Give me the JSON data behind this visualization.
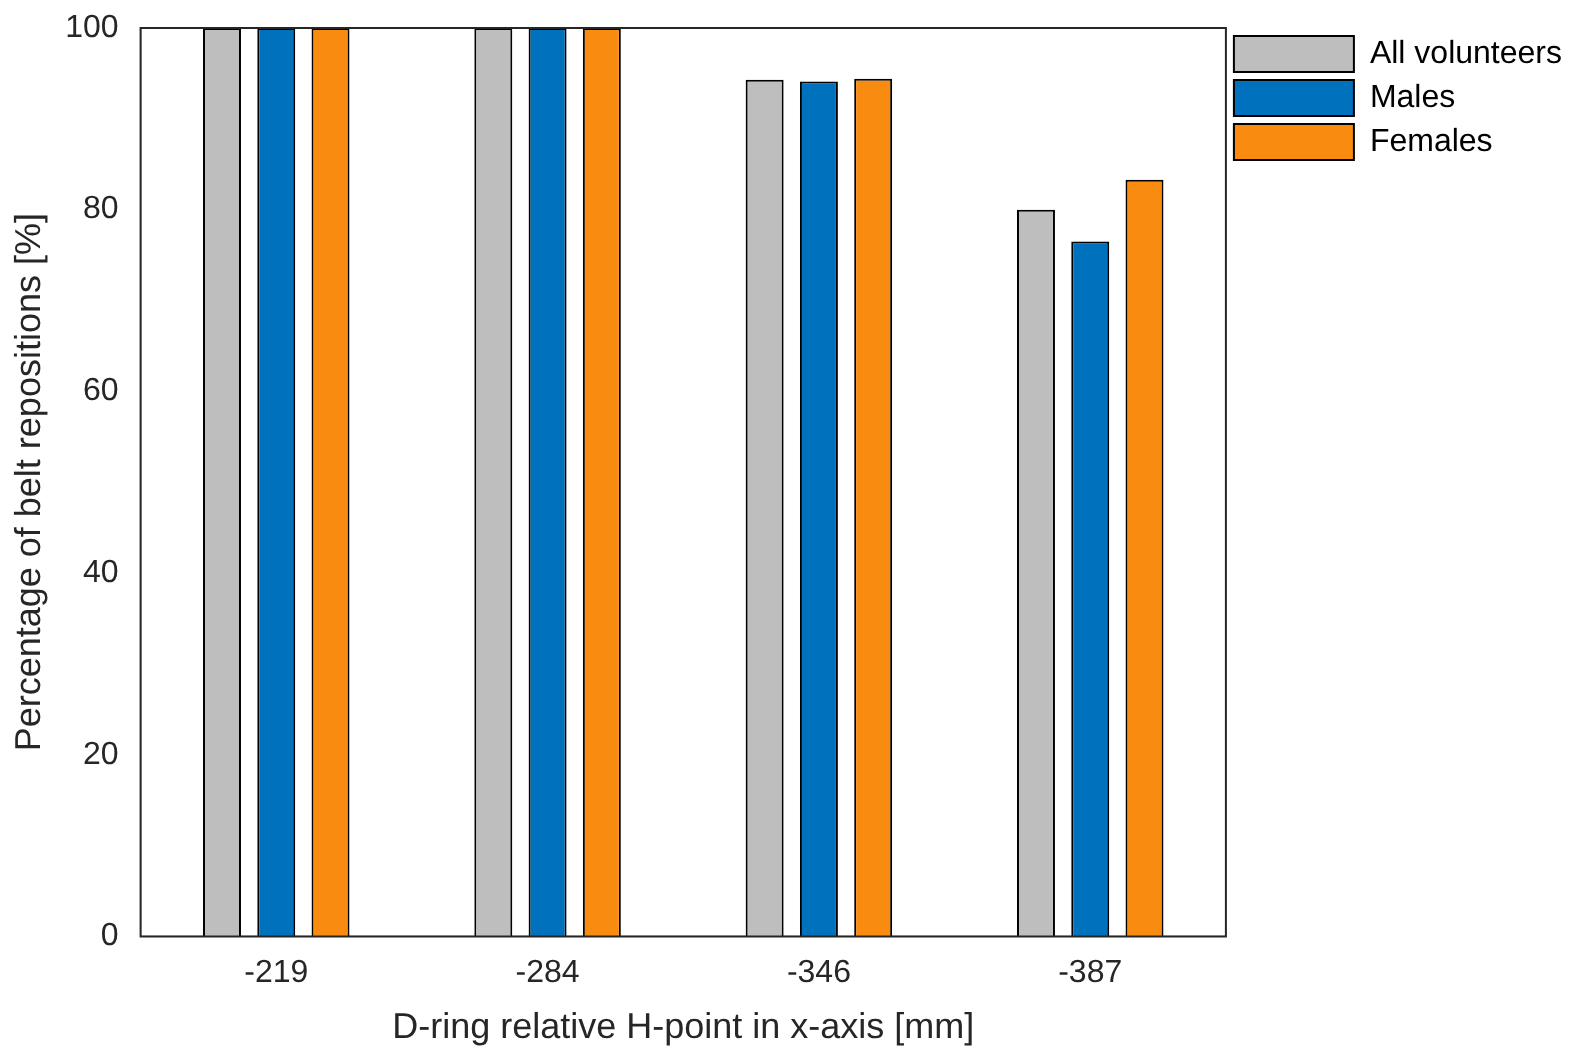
{
  "chart_data": {
    "type": "bar",
    "xlabel": "D-ring relative H-point in x-axis [mm]",
    "ylabel": "Percentage of belt repositions [%]",
    "categories": [
      "-219",
      "-284",
      "-346",
      "-387"
    ],
    "series": [
      {
        "name": "All volunteers",
        "color": "#bebebe",
        "values": [
          100,
          100,
          94.3,
          80.0
        ]
      },
      {
        "name": "Males",
        "color": "#0072bd",
        "values": [
          100,
          100,
          94.1,
          76.5
        ]
      },
      {
        "name": "Females",
        "color": "#f98c10",
        "values": [
          100,
          100,
          94.4,
          83.3
        ]
      }
    ],
    "ylim": [
      0,
      100
    ],
    "yticks": [
      0,
      20,
      40,
      60,
      80,
      100
    ],
    "grid": false,
    "legend": "top right"
  }
}
